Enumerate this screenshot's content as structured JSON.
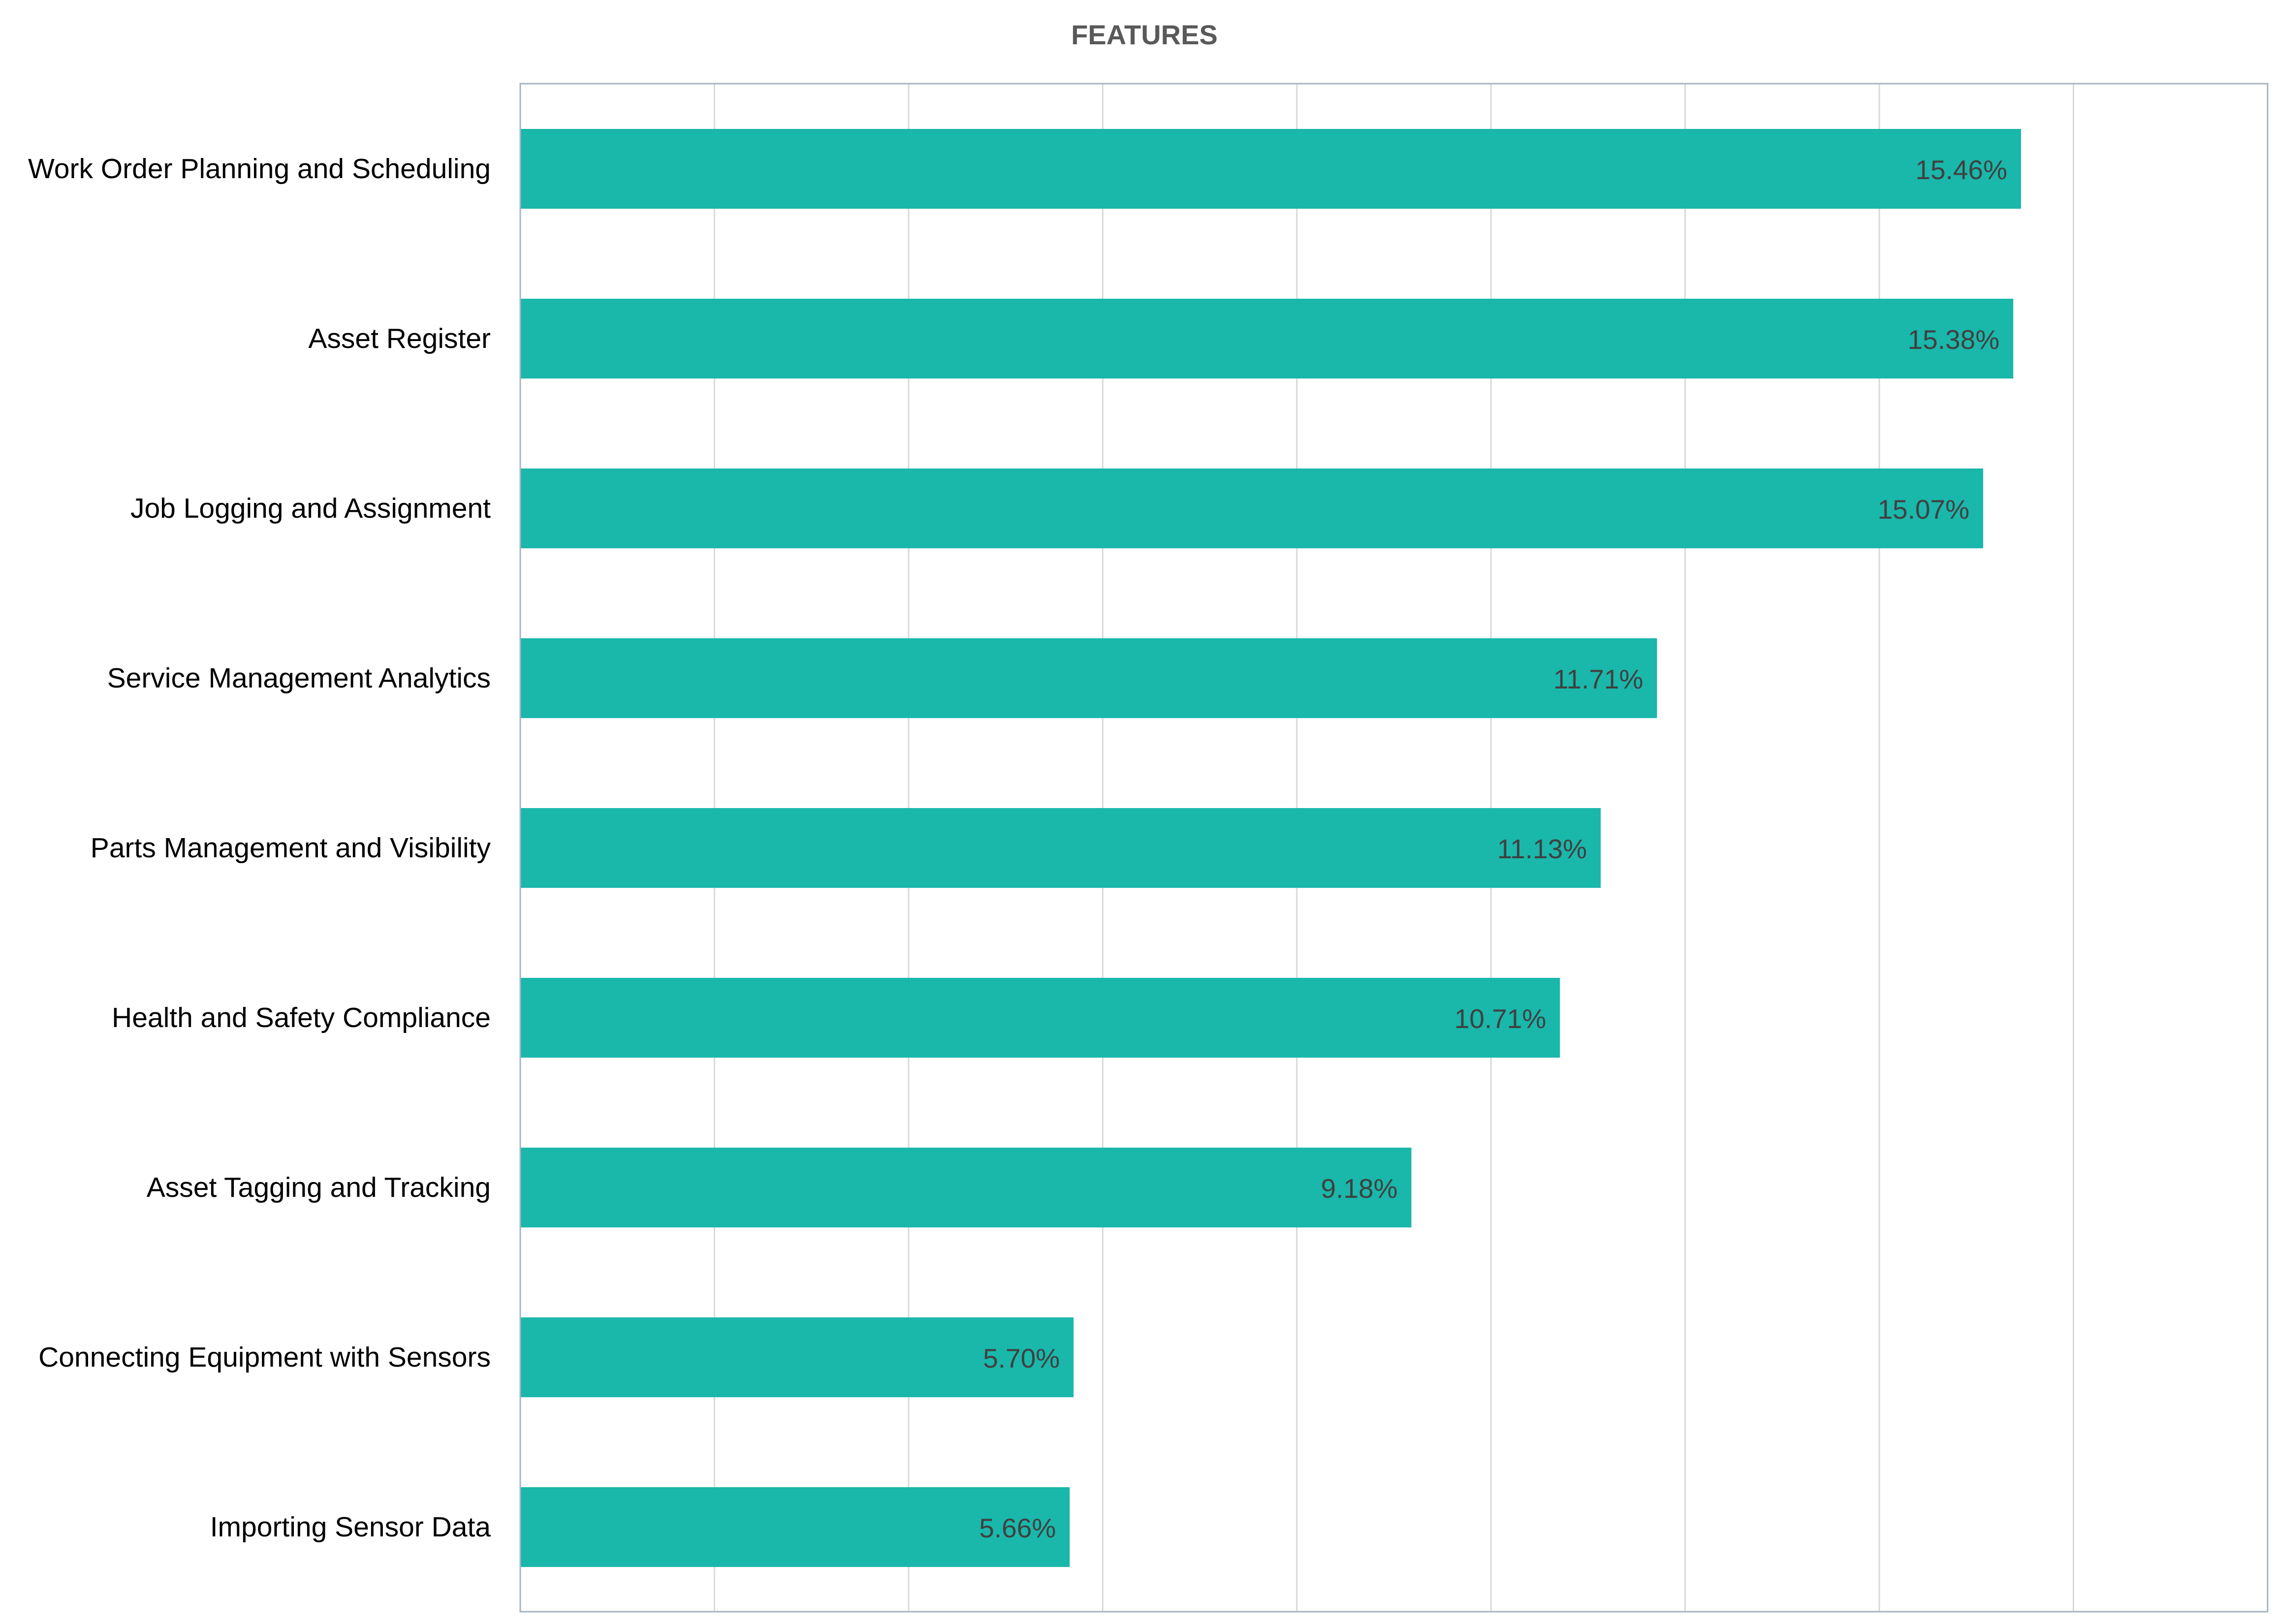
{
  "chart_data": {
    "type": "bar",
    "orientation": "horizontal",
    "title": "FEATURES",
    "xlabel": "",
    "ylabel": "",
    "categories": [
      "Work Order Planning and Scheduling",
      "Asset Register",
      "Job Logging and Assignment",
      "Service Management Analytics",
      "Parts Management and Visibility",
      "Health and Safety Compliance",
      "Asset Tagging and Tracking",
      "Connecting Equipment with Sensors",
      "Importing Sensor Data"
    ],
    "values": [
      15.46,
      15.38,
      15.07,
      11.71,
      11.13,
      10.71,
      9.18,
      5.7,
      5.66
    ],
    "data_labels": [
      "15.46%",
      "15.38%",
      "15.07%",
      "11.71%",
      "11.13%",
      "10.71%",
      "9.18%",
      "5.70%",
      "5.66%"
    ],
    "xlim": [
      0,
      18
    ],
    "x_gridline_step": 2,
    "grid": true,
    "legend": "none",
    "bar_color": "#1ab7ab",
    "gridline_color": "#d9d9d9",
    "plot_border_color": "#a6b3c0"
  }
}
